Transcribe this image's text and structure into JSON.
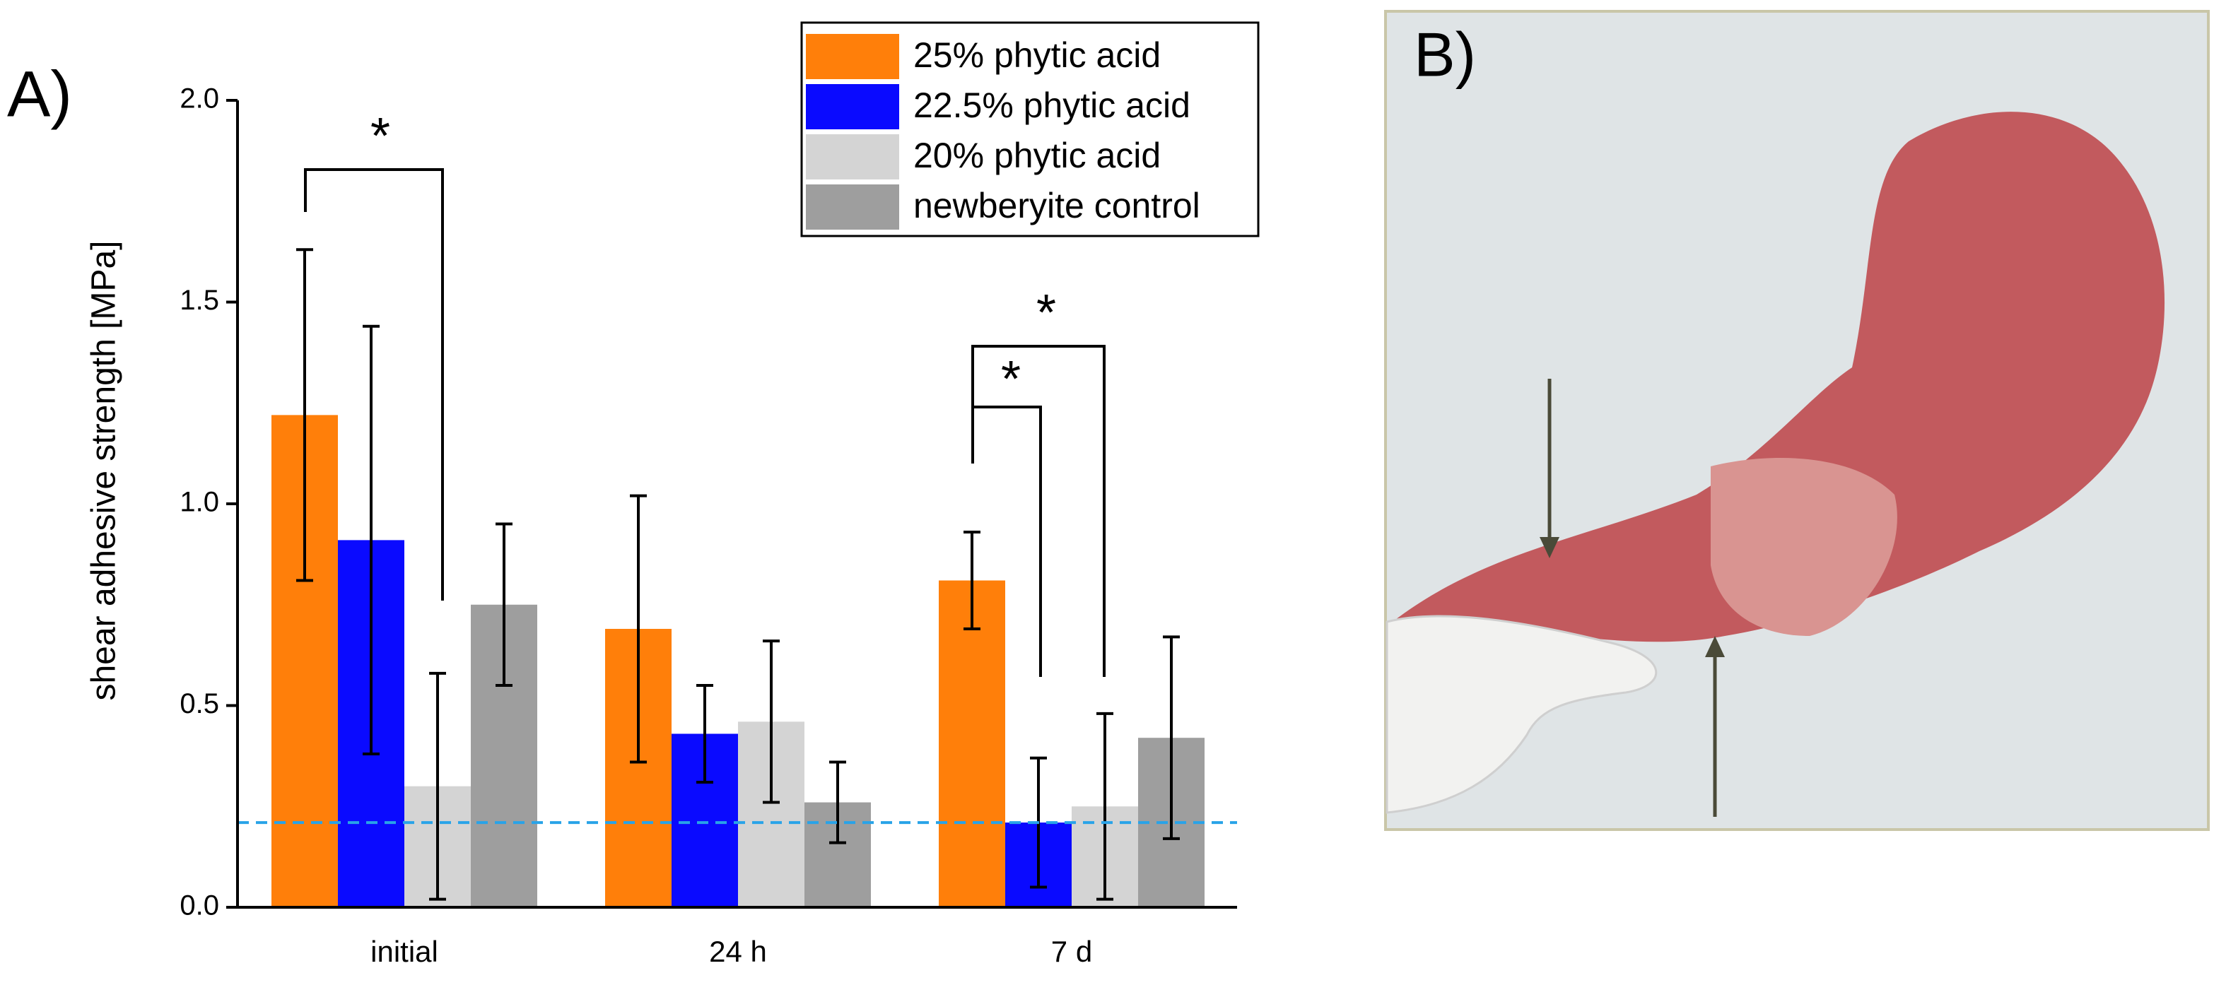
{
  "chart_data": {
    "type": "bar",
    "panel_label": "A)",
    "y_label": "shear adhesive strength [MPa]",
    "categories": [
      "initial",
      "24 h",
      "7 d"
    ],
    "series": [
      {
        "name": "25% phytic acid",
        "color": "#ff7f0a",
        "values": [
          1.22,
          0.69,
          0.81
        ],
        "errors": [
          0.41,
          0.33,
          0.12
        ]
      },
      {
        "name": "22.5% phytic acid",
        "color": "#0a0aff",
        "values": [
          0.91,
          0.43,
          0.21
        ],
        "errors": [
          0.53,
          0.12,
          0.16
        ]
      },
      {
        "name": "20% phytic acid",
        "color": "#d4d4d4",
        "values": [
          0.3,
          0.46,
          0.25
        ],
        "errors": [
          0.28,
          0.2,
          0.23
        ]
      },
      {
        "name": "newberyite control",
        "color": "#9e9e9e",
        "values": [
          0.75,
          0.26,
          0.42
        ],
        "errors": [
          0.2,
          0.1,
          0.25
        ]
      }
    ],
    "reference_line": {
      "value": 0.21,
      "color": "#29a3e8"
    },
    "annotations": [
      "*",
      "*",
      "*"
    ],
    "ylim": [
      0,
      2.0
    ],
    "yticks": [
      {
        "value": 0,
        "label": "0.0"
      },
      {
        "value": 0.5,
        "label": "0.5"
      },
      {
        "value": 1.0,
        "label": "1.0"
      },
      {
        "value": 1.5,
        "label": "1.5"
      },
      {
        "value": 2.0,
        "label": "2.0"
      }
    ],
    "grid": false,
    "legend": "top-right"
  },
  "photo_panel": {
    "label": "B)"
  }
}
